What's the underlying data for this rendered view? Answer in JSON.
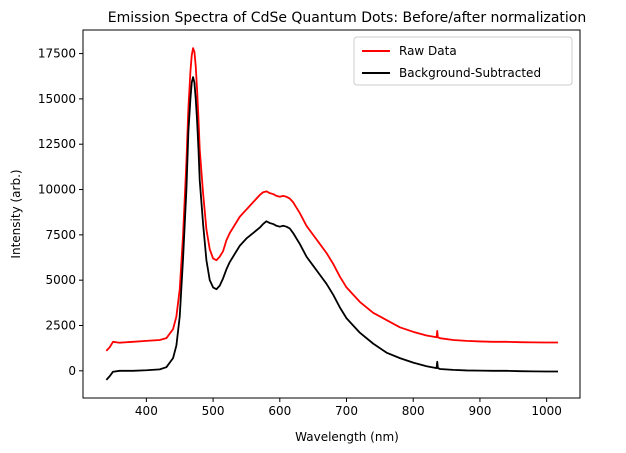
{
  "chart_data": {
    "type": "line",
    "title": "Emission Spectra of CdSe Quantum Dots: Before/after normalization",
    "xlabel": "Wavelength (nm)",
    "ylabel": "Intensity (arb.)",
    "xlim": [
      305,
      1050
    ],
    "ylim": [
      -1500,
      18800
    ],
    "x_ticks": [
      400,
      500,
      600,
      700,
      800,
      900,
      1000
    ],
    "y_ticks": [
      0,
      2500,
      5000,
      7500,
      10000,
      12500,
      15000,
      17500
    ],
    "legend_position": "top-right",
    "grid": false,
    "series": [
      {
        "name": "Raw Data",
        "color": "#ff0000",
        "x": [
          340,
          345,
          350,
          360,
          380,
          400,
          420,
          430,
          440,
          445,
          450,
          455,
          460,
          463,
          466,
          468,
          470,
          472,
          474,
          476,
          478,
          480,
          485,
          490,
          495,
          500,
          505,
          510,
          515,
          520,
          525,
          530,
          540,
          550,
          560,
          570,
          575,
          580,
          585,
          590,
          595,
          600,
          605,
          610,
          615,
          620,
          625,
          630,
          640,
          650,
          660,
          670,
          680,
          690,
          700,
          720,
          740,
          760,
          780,
          800,
          820,
          835,
          836,
          837,
          840,
          860,
          880,
          900,
          920,
          940,
          960,
          980,
          1000,
          1017
        ],
        "y": [
          1100,
          1300,
          1600,
          1550,
          1600,
          1650,
          1700,
          1800,
          2300,
          3000,
          4500,
          7500,
          11500,
          14500,
          16500,
          17400,
          17800,
          17600,
          16800,
          15500,
          14000,
          12200,
          9800,
          7800,
          6700,
          6200,
          6100,
          6300,
          6600,
          7200,
          7600,
          7900,
          8500,
          8900,
          9300,
          9700,
          9850,
          9900,
          9800,
          9750,
          9650,
          9600,
          9650,
          9600,
          9500,
          9300,
          9000,
          8700,
          8000,
          7500,
          7000,
          6500,
          5900,
          5200,
          4600,
          3800,
          3200,
          2800,
          2400,
          2150,
          1950,
          1850,
          2200,
          1850,
          1800,
          1700,
          1650,
          1620,
          1600,
          1600,
          1580,
          1570,
          1560,
          1560
        ]
      },
      {
        "name": "Background-Subtracted",
        "color": "#000000",
        "x": [
          340,
          345,
          350,
          360,
          380,
          400,
          420,
          430,
          440,
          445,
          450,
          455,
          460,
          463,
          466,
          468,
          470,
          472,
          474,
          476,
          478,
          480,
          485,
          490,
          495,
          500,
          505,
          510,
          515,
          520,
          525,
          530,
          540,
          550,
          560,
          570,
          575,
          580,
          585,
          590,
          595,
          600,
          605,
          610,
          615,
          620,
          625,
          630,
          640,
          650,
          660,
          670,
          680,
          690,
          700,
          720,
          740,
          760,
          780,
          800,
          820,
          835,
          836,
          837,
          840,
          860,
          880,
          900,
          920,
          940,
          960,
          980,
          1000,
          1017
        ],
        "y": [
          -500,
          -300,
          -50,
          0,
          0,
          30,
          80,
          200,
          700,
          1400,
          3000,
          6200,
          10000,
          13200,
          15000,
          15900,
          16200,
          15900,
          15000,
          13800,
          12300,
          10500,
          8100,
          6100,
          5000,
          4600,
          4500,
          4700,
          5100,
          5600,
          6000,
          6300,
          6900,
          7300,
          7600,
          7900,
          8100,
          8250,
          8150,
          8100,
          8000,
          7950,
          8000,
          7950,
          7850,
          7600,
          7300,
          7000,
          6300,
          5800,
          5300,
          4800,
          4200,
          3500,
          2900,
          2100,
          1500,
          1000,
          700,
          450,
          250,
          150,
          500,
          150,
          100,
          50,
          20,
          10,
          0,
          0,
          -20,
          -30,
          -40,
          -40
        ]
      }
    ]
  }
}
